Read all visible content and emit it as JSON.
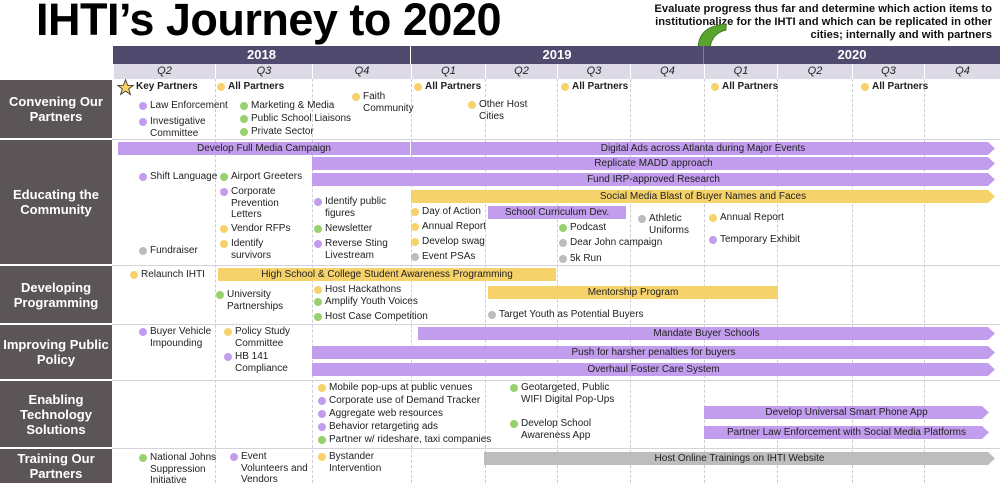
{
  "title": "IHTI’s Journey to 2020",
  "note": "Evaluate progress thus far and determine which action items to institutionalize for the IHTI and which can be replicated in other cities; internally and with partners",
  "colors": {
    "purple": "#c29ded",
    "yellow": "#f6d26b",
    "gray": "#bdbdbd",
    "green": "#98d16d",
    "header": "#4f4a6e",
    "band": "#5b5558",
    "arrow": "#5aa530"
  },
  "years": [
    "2018",
    "2019",
    "2020"
  ],
  "quarters": [
    "Q2",
    "Q3",
    "Q4",
    "Q1",
    "Q2",
    "Q3",
    "Q4",
    "Q1",
    "Q2",
    "Q3",
    "Q4"
  ],
  "rows": [
    {
      "label": "Convening Our Partners"
    },
    {
      "label": "Educating the Community"
    },
    {
      "label": "Developing Programming"
    },
    {
      "label": "Improving Public Policy"
    },
    {
      "label": "Enabling Technology Solutions"
    },
    {
      "label": "Training Our Partners"
    }
  ],
  "items": [
    {
      "text": "Key Partners",
      "color": "star",
      "bold": true
    },
    {
      "text": "Law Enforcement",
      "color": "purple"
    },
    {
      "text": "Investigative Committee",
      "color": "purple"
    },
    {
      "text": "All Partners",
      "color": "yellow",
      "bold": true
    },
    {
      "text": "Marketing & Media",
      "color": "green"
    },
    {
      "text": "Public School Liaisons",
      "color": "green"
    },
    {
      "text": "Private Sector",
      "color": "green"
    },
    {
      "text": "Faith Community",
      "color": "yellow"
    },
    {
      "text": "All Partners",
      "color": "yellow",
      "bold": true
    },
    {
      "text": "Other Host Cities",
      "color": "yellow"
    },
    {
      "text": "All Partners",
      "color": "yellow",
      "bold": true
    },
    {
      "text": "All Partners",
      "color": "yellow",
      "bold": true
    },
    {
      "text": "All Partners",
      "color": "yellow",
      "bold": true
    },
    {
      "text": "Shift Language",
      "color": "purple"
    },
    {
      "text": "Airport Greeters",
      "color": "green"
    },
    {
      "text": "Corporate Prevention Letters",
      "color": "purple"
    },
    {
      "text": "Vendor RFPs",
      "color": "yellow"
    },
    {
      "text": "Identify survivors",
      "color": "yellow"
    },
    {
      "text": "Fundraiser",
      "color": "gray"
    },
    {
      "text": "Identify public figures",
      "color": "purple"
    },
    {
      "text": "Newsletter",
      "color": "green"
    },
    {
      "text": "Reverse Sting Livestream",
      "color": "purple"
    },
    {
      "text": "Day of Action",
      "color": "yellow"
    },
    {
      "text": "Annual Report",
      "color": "yellow"
    },
    {
      "text": "Develop swag",
      "color": "yellow"
    },
    {
      "text": "Event PSAs",
      "color": "gray"
    },
    {
      "text": "Podcast",
      "color": "green"
    },
    {
      "text": "Dear John campaign",
      "color": "gray"
    },
    {
      "text": "5k Run",
      "color": "gray"
    },
    {
      "text": "Athletic Uniforms",
      "color": "gray"
    },
    {
      "text": "Annual Report",
      "color": "yellow"
    },
    {
      "text": "Temporary Exhibit",
      "color": "purple"
    },
    {
      "text": "Relaunch IHTI",
      "color": "yellow"
    },
    {
      "text": "University Partnerships",
      "color": "green"
    },
    {
      "text": "Host Hackathons",
      "color": "yellow"
    },
    {
      "text": "Amplify Youth Voices",
      "color": "green"
    },
    {
      "text": "Host Case Competition",
      "color": "green"
    },
    {
      "text": "Target Youth as Potential Buyers",
      "color": "gray"
    },
    {
      "text": "Buyer Vehicle Impounding",
      "color": "purple"
    },
    {
      "text": "Policy Study Committee",
      "color": "yellow"
    },
    {
      "text": "HB 141 Compliance",
      "color": "purple"
    },
    {
      "text": "Mobile pop-ups at public venues",
      "color": "yellow"
    },
    {
      "text": "Corporate use of Demand Tracker",
      "color": "purple"
    },
    {
      "text": "Aggregate web resources",
      "color": "purple"
    },
    {
      "text": "Behavior retargeting ads",
      "color": "purple"
    },
    {
      "text": "Partner w/ rideshare, taxi companies",
      "color": "green"
    },
    {
      "text": "Geotargeted, Public WIFI Digital Pop-Ups",
      "color": "green"
    },
    {
      "text": "Develop School Awareness App",
      "color": "green"
    },
    {
      "text": "National Johns Suppression Initiative",
      "color": "green"
    },
    {
      "text": "Event Volunteers and Vendors",
      "color": "purple"
    },
    {
      "text": "Bystander Intervention",
      "color": "yellow"
    }
  ],
  "bars": [
    {
      "text": "Develop Full Media Campaign",
      "color": "purple"
    },
    {
      "text": "Digital Ads across Atlanta during Major Events",
      "color": "purple"
    },
    {
      "text": "Replicate MADD approach",
      "color": "purple"
    },
    {
      "text": "Fund IRP-approved Research",
      "color": "purple"
    },
    {
      "text": "Social Media Blast of Buyer Names and Faces",
      "color": "yellow"
    },
    {
      "text": "School Curriculum Dev.",
      "color": "purple"
    },
    {
      "text": "High School & College Student Awareness Programming",
      "color": "yellow"
    },
    {
      "text": "Mentorship Program",
      "color": "yellow"
    },
    {
      "text": "Mandate Buyer Schools",
      "color": "purple"
    },
    {
      "text": "Push for harsher penalties for buyers",
      "color": "purple"
    },
    {
      "text": "Overhaul Foster Care System",
      "color": "purple"
    },
    {
      "text": "Develop Universal Smart Phone App",
      "color": "purple"
    },
    {
      "text": "Partner Law Enforcement with Social Media Platforms",
      "color": "purple"
    },
    {
      "text": "Host Online Trainings on IHTI Website",
      "color": "gray"
    }
  ]
}
